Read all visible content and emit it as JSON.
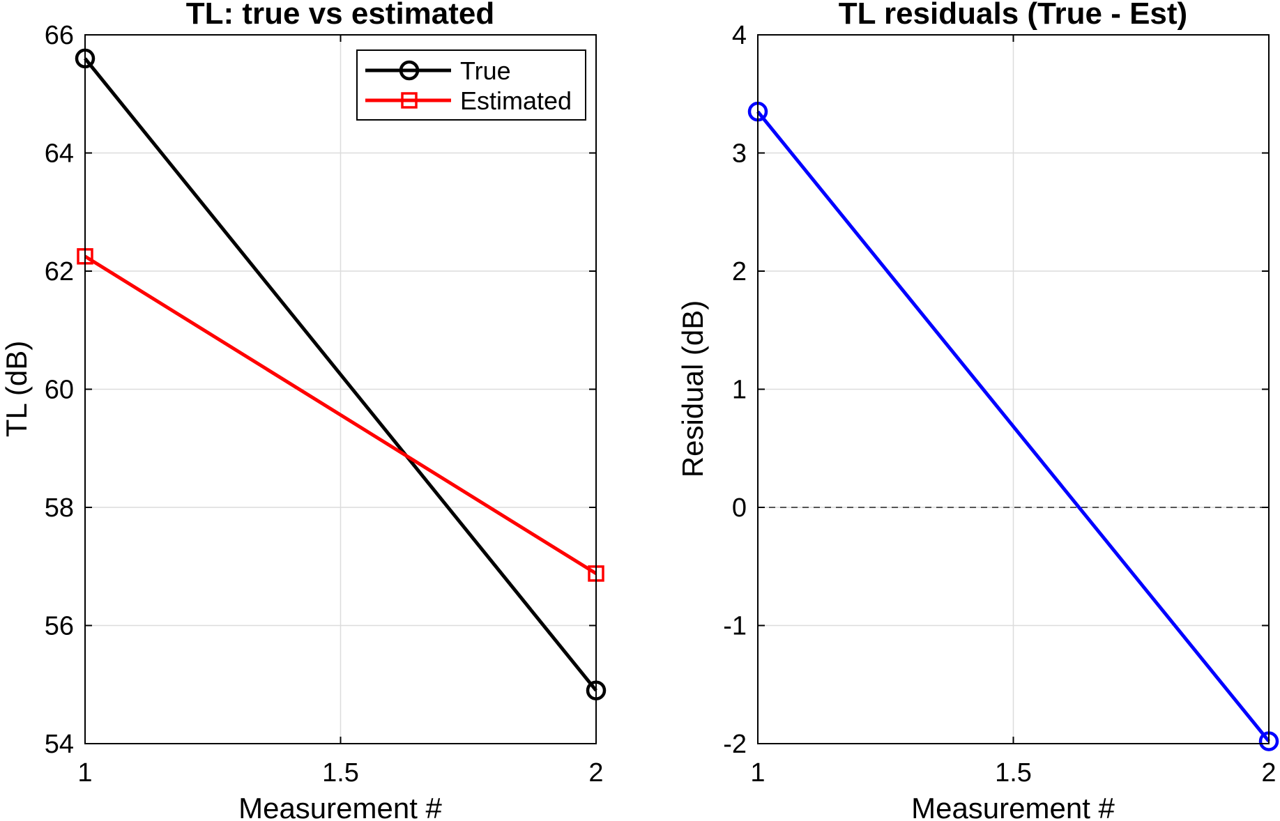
{
  "chart_data": [
    {
      "type": "line",
      "title": "TL: true vs estimated",
      "xlabel": "Measurement #",
      "ylabel": "TL (dB)",
      "xlim": [
        1,
        2
      ],
      "ylim": [
        54,
        66
      ],
      "xticks": [
        1,
        1.5,
        2
      ],
      "xtick_labels": [
        "1",
        "1.5",
        "2"
      ],
      "yticks": [
        54,
        56,
        58,
        60,
        62,
        64,
        66
      ],
      "ytick_labels": [
        "54",
        "56",
        "58",
        "60",
        "62",
        "64",
        "66"
      ],
      "grid": true,
      "legend_location": "top-right",
      "x": [
        1,
        2
      ],
      "series": [
        {
          "name": "True",
          "values": [
            65.6,
            54.9
          ],
          "color": "#000000",
          "marker": "circle"
        },
        {
          "name": "Estimated",
          "values": [
            62.25,
            56.88
          ],
          "color": "#ff0000",
          "marker": "square"
        }
      ]
    },
    {
      "type": "line",
      "title": "TL residuals (True - Est)",
      "xlabel": "Measurement #",
      "ylabel": "Residual (dB)",
      "xlim": [
        1,
        2
      ],
      "ylim": [
        -2,
        4
      ],
      "xticks": [
        1,
        1.5,
        2
      ],
      "xtick_labels": [
        "1",
        "1.5",
        "2"
      ],
      "yticks": [
        -2,
        -1,
        0,
        1,
        2,
        3,
        4
      ],
      "ytick_labels": [
        "-2",
        "-1",
        "0",
        "1",
        "2",
        "3",
        "4"
      ],
      "grid": true,
      "reference_line": {
        "y": 0,
        "style": "dashed",
        "color": "#555555"
      },
      "x": [
        1,
        2
      ],
      "series": [
        {
          "values": [
            3.35,
            -1.98
          ],
          "color": "#0000ff",
          "marker": "circle"
        }
      ]
    }
  ]
}
